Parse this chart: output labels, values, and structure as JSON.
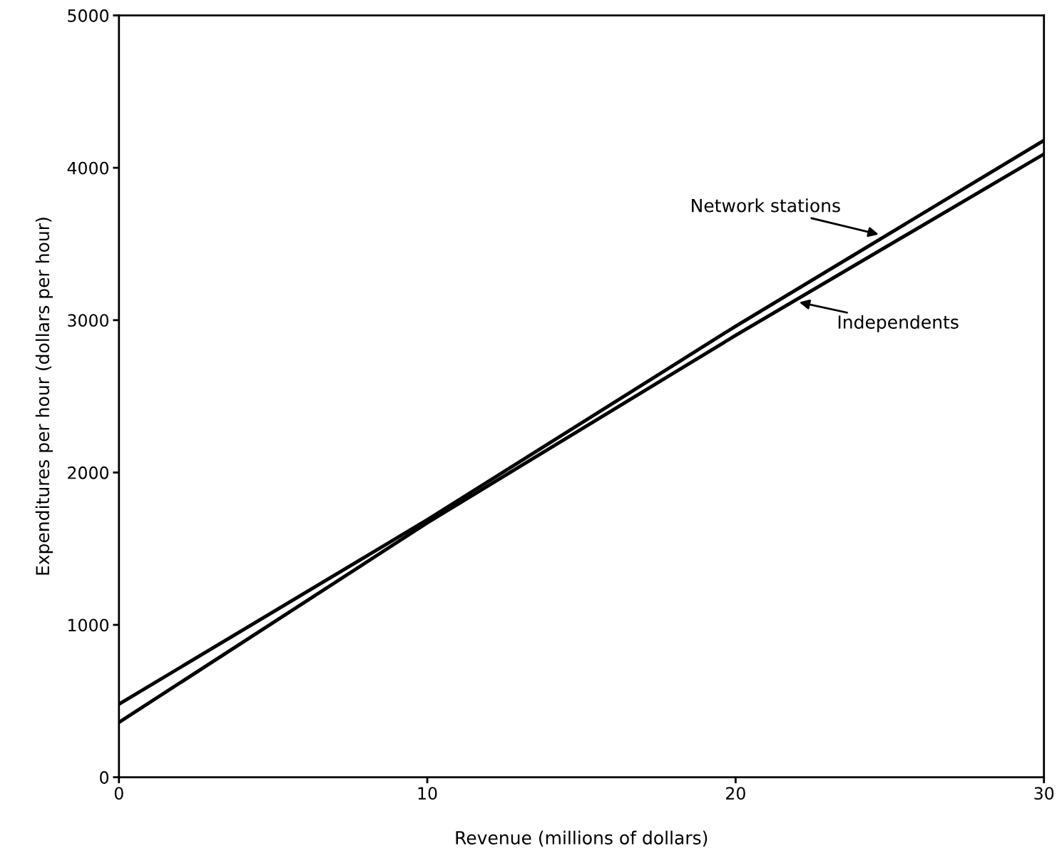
{
  "chart_data": {
    "type": "line",
    "xlabel": "Revenue (millions of dollars)",
    "ylabel": "Expenditures per hour (dollars per hour)",
    "xlim": [
      0,
      30
    ],
    "xticks": [
      0,
      10,
      20,
      30
    ],
    "ylim": [
      0,
      5000
    ],
    "yticks": [
      0,
      1000,
      2000,
      3000,
      4000,
      5000
    ],
    "grid": false,
    "legend": false,
    "series": [
      {
        "color": "#000000",
        "x": [
          0,
          10,
          20,
          30
        ],
        "values": [
          480,
          1690,
          2960,
          4180
        ]
      },
      {
        "color": "#000000",
        "x": [
          0,
          10,
          20,
          30
        ],
        "values": [
          360,
          1670,
          2900,
          4090
        ]
      }
    ],
    "annotations": [
      {
        "text": "Network stations",
        "x": 24.7,
        "y": 3560
      },
      {
        "text": "Independents",
        "x": 22.0,
        "y": 3120
      }
    ]
  }
}
